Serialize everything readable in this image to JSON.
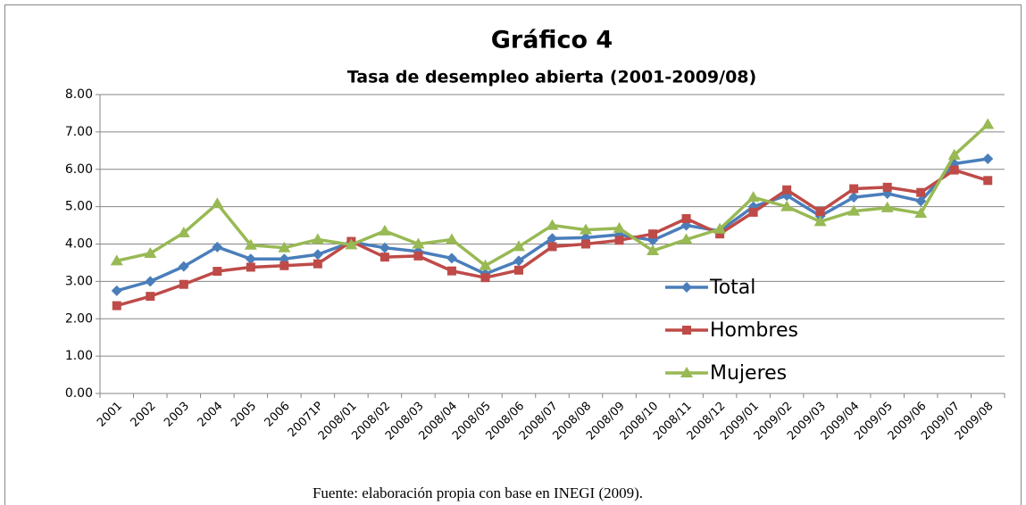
{
  "chart_data": {
    "type": "line",
    "title": "Gráfico 4",
    "subtitle": "Tasa de desempleo abierta (2001-2009/08)",
    "note": "Fuente: elaboración propia con base en INEGI (2009).",
    "categories": [
      "2001",
      "2002",
      "2003",
      "2004",
      "2005",
      "2006",
      "20071P",
      "2008/01",
      "2008/02",
      "2008/03",
      "2008/04",
      "2008/05",
      "2008/06",
      "2008/07",
      "2008/08",
      "2008/09",
      "2008/10",
      "2008/11",
      "2008/12",
      "2009/01",
      "2009/02",
      "2009/03",
      "2009/04",
      "2009/05",
      "2009/06",
      "2009/07",
      "2009/08"
    ],
    "series": [
      {
        "name": "Total",
        "color": "#4a7ebb",
        "marker": "diamond",
        "values": [
          2.75,
          3.0,
          3.4,
          3.92,
          3.6,
          3.6,
          3.72,
          4.05,
          3.9,
          3.8,
          3.62,
          3.2,
          3.55,
          4.15,
          4.17,
          4.25,
          4.1,
          4.5,
          4.35,
          5.0,
          5.3,
          4.75,
          5.25,
          5.35,
          5.15,
          6.15,
          6.28
        ]
      },
      {
        "name": "Hombres",
        "color": "#be4b48",
        "marker": "square",
        "values": [
          2.35,
          2.6,
          2.92,
          3.27,
          3.38,
          3.42,
          3.47,
          4.07,
          3.65,
          3.68,
          3.28,
          3.1,
          3.3,
          3.93,
          4.0,
          4.1,
          4.27,
          4.68,
          4.27,
          4.85,
          5.45,
          4.87,
          5.48,
          5.52,
          5.38,
          5.98,
          5.7
        ]
      },
      {
        "name": "Mujeres",
        "color": "#98b954",
        "marker": "triangle",
        "values": [
          3.55,
          3.75,
          4.3,
          5.08,
          3.97,
          3.9,
          4.12,
          3.98,
          4.35,
          4.0,
          4.12,
          3.42,
          3.93,
          4.5,
          4.38,
          4.42,
          3.82,
          4.12,
          4.4,
          5.25,
          5.0,
          4.6,
          4.88,
          4.97,
          4.82,
          6.38,
          7.2
        ]
      }
    ],
    "ylim": [
      0,
      8
    ],
    "yticks": [
      {
        "value": 0,
        "label": "0.00"
      },
      {
        "value": 1,
        "label": "1.00"
      },
      {
        "value": 2,
        "label": "2.00"
      },
      {
        "value": 3,
        "label": "3.00"
      },
      {
        "value": 4,
        "label": "4.00"
      },
      {
        "value": 5,
        "label": "5.00"
      },
      {
        "value": 6,
        "label": "6.00"
      },
      {
        "value": 7,
        "label": "7.00"
      },
      {
        "value": 8,
        "label": "8.00"
      }
    ],
    "grid": true,
    "legend": "right"
  }
}
